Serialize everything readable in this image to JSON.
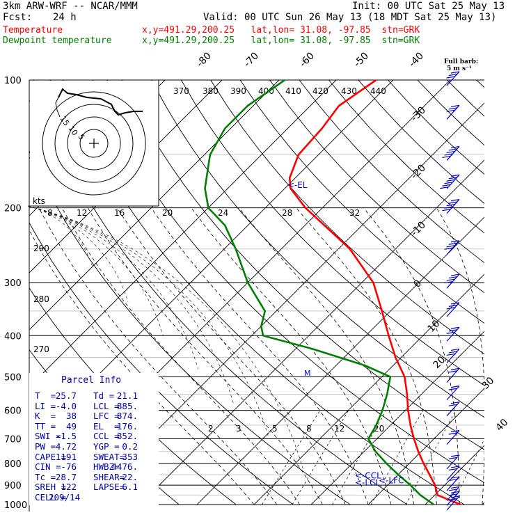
{
  "header": {
    "model": "3km ARW-WRF -- NCAR/MMM",
    "init": "Init: 00 UTC Sat 25 May 13",
    "fcst_label": "Fcst:",
    "fcst_value": "24 h",
    "valid": "Valid: 00 UTC Sun 26 May 13 (18 MDT Sat 25 May 13)",
    "temp_label": "Temperature",
    "temp_loc": "x,y=491.29,200.25   lat,lon= 31.08, -97.85  stn=GRK",
    "dew_label": "Dewpoint temperature",
    "dew_loc": "x,y=491.29,200.25   lat,lon= 31.08, -97.85  stn=GRK",
    "barb_title": "Full barb:",
    "barb_unit": "5 m s⁻¹"
  },
  "colors": {
    "temperature": "#ff0000",
    "dewpoint": "#008000",
    "wind": "#0000cc",
    "header_red": "#ff0000",
    "header_green": "#008000",
    "parcel_blue": "#0000aa"
  },
  "chart_data": {
    "type": "line",
    "y_axis": {
      "scale": "log",
      "pressure_ticks": [
        100,
        200,
        300,
        400,
        500,
        600,
        700,
        800,
        900,
        1000
      ],
      "ylim": [
        1000,
        100
      ]
    },
    "isotherm_labels": [
      "-80",
      "-70",
      "-60",
      "-50",
      "-40",
      "-30",
      "-20",
      "-10",
      "0",
      "10",
      "20",
      "30",
      "40"
    ],
    "theta_labels": [
      "370",
      "380",
      "390",
      "400",
      "410",
      "420",
      "430",
      "440"
    ],
    "theta_side_labels": [
      "290",
      "280",
      "270"
    ],
    "mixing_ratio_labels": [
      "2",
      "3",
      "5",
      "8",
      "12",
      "20"
    ],
    "hodograph_unit": "kts",
    "hodograph_ring_labels": [
      "8",
      "12",
      "16",
      "20",
      "24",
      "28",
      "32"
    ],
    "inset_rings": [
      "15",
      "10",
      "5"
    ],
    "levels": [
      {
        "name": "EL",
        "label": "<-EL",
        "p": 176
      },
      {
        "name": "LCL",
        "label": "<-LCL",
        "p": 885
      },
      {
        "name": "LFC",
        "label": "<-LFC",
        "p": 874
      },
      {
        "name": "CCL",
        "label": "<-CCL",
        "p": 852
      }
    ],
    "series": [
      {
        "name": "Temperature",
        "points": [
          [
            1000,
            26.2
          ],
          [
            950,
            20.5
          ],
          [
            900,
            18.3
          ],
          [
            850,
            15.5
          ],
          [
            800,
            12.5
          ],
          [
            750,
            9.5
          ],
          [
            700,
            6.5
          ],
          [
            650,
            3.5
          ],
          [
            600,
            0.5
          ],
          [
            550,
            -2.5
          ],
          [
            500,
            -6
          ],
          [
            450,
            -11
          ],
          [
            400,
            -16
          ],
          [
            350,
            -21.5
          ],
          [
            300,
            -28
          ],
          [
            250,
            -38
          ],
          [
            200,
            -53
          ],
          [
            180,
            -59
          ],
          [
            170,
            -61
          ],
          [
            150,
            -63.5
          ],
          [
            130,
            -64
          ],
          [
            115,
            -65
          ],
          [
            100,
            -63
          ]
        ]
      },
      {
        "name": "Dewpoint temperature",
        "points": [
          [
            1000,
            21.5
          ],
          [
            950,
            17.5
          ],
          [
            900,
            14
          ],
          [
            850,
            10
          ],
          [
            800,
            6
          ],
          [
            750,
            2
          ],
          [
            700,
            -1.5
          ],
          [
            650,
            -2.5
          ],
          [
            600,
            -4
          ],
          [
            550,
            -6
          ],
          [
            500,
            -8.5
          ],
          [
            470,
            -15
          ],
          [
            430,
            -27
          ],
          [
            400,
            -38
          ],
          [
            380,
            -40
          ],
          [
            350,
            -42
          ],
          [
            300,
            -50
          ],
          [
            250,
            -58
          ],
          [
            220,
            -64
          ],
          [
            200,
            -70
          ],
          [
            180,
            -74
          ],
          [
            150,
            -79
          ],
          [
            130,
            -81
          ],
          [
            115,
            -81
          ],
          [
            100,
            -79
          ]
        ]
      }
    ],
    "wind_barbs": [
      {
        "p": 100,
        "spd": 15
      },
      {
        "p": 120,
        "spd": 15
      },
      {
        "p": 150,
        "spd": 25
      },
      {
        "p": 175,
        "spd": 30
      },
      {
        "p": 200,
        "spd": 25
      },
      {
        "p": 250,
        "spd": 20
      },
      {
        "p": 300,
        "spd": 20
      },
      {
        "p": 350,
        "spd": 15
      },
      {
        "p": 400,
        "spd": 15
      },
      {
        "p": 450,
        "spd": 15
      },
      {
        "p": 500,
        "spd": 10
      },
      {
        "p": 550,
        "spd": 10
      },
      {
        "p": 600,
        "spd": 10
      },
      {
        "p": 700,
        "spd": 10
      },
      {
        "p": 800,
        "spd": 10
      },
      {
        "p": 850,
        "spd": 10
      },
      {
        "p": 900,
        "spd": 10
      },
      {
        "p": 950,
        "spd": 10
      },
      {
        "p": 975,
        "spd": 10
      },
      {
        "p": 1000,
        "spd": 10
      }
    ]
  },
  "parcel_info": {
    "title": "Parcel Info",
    "rows": [
      [
        "T  =",
        "25.7",
        "Td =",
        "21.1"
      ],
      [
        "LI =",
        "-4.0",
        "LCL =",
        "885."
      ],
      [
        "K  =",
        "38",
        "LFC =",
        "874."
      ],
      [
        "TT =",
        "49",
        "EL  =",
        "176."
      ],
      [
        "SWI =",
        "-1.5",
        "CCL =",
        "852."
      ],
      [
        "PW =",
        "4.72",
        "YGP =",
        "0.2"
      ],
      [
        "CAPE =",
        "1191",
        "SWEAT=",
        "353"
      ],
      [
        "CIN =",
        "-76",
        "HWBZ=",
        "4476."
      ],
      [
        "Tc =",
        "28.7",
        "SHEAR=",
        "22."
      ],
      [
        "SREH =",
        "122",
        "LAPSE=",
        "6.1"
      ],
      [
        "CELL =",
        "209/14",
        "",
        ""
      ]
    ]
  }
}
